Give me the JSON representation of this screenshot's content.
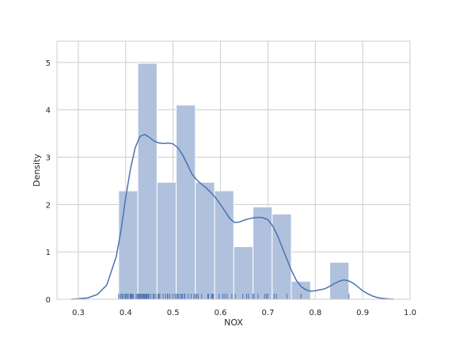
{
  "chart_data": {
    "type": "histogram",
    "xlabel": "NOX",
    "ylabel": "Density",
    "xlim": [
      0.255,
      1.0
    ],
    "ylim": [
      0,
      5.45
    ],
    "x_ticks": [
      0.3,
      0.4,
      0.5,
      0.6,
      0.7,
      0.8,
      0.9,
      1.0
    ],
    "x_tick_labels": [
      "0.3",
      "0.4",
      "0.5",
      "0.6",
      "0.7",
      "0.8",
      "0.9",
      "1.0"
    ],
    "y_ticks": [
      0,
      1,
      2,
      3,
      4,
      5
    ],
    "y_tick_labels": [
      "0",
      "1",
      "2",
      "3",
      "4",
      "5"
    ],
    "grid": true,
    "histogram": {
      "bins": [
        {
          "x0": 0.385,
          "x1": 0.4255,
          "density": 2.29
        },
        {
          "x0": 0.4255,
          "x1": 0.466,
          "density": 4.98
        },
        {
          "x0": 0.466,
          "x1": 0.5065,
          "density": 2.47
        },
        {
          "x0": 0.5065,
          "x1": 0.547,
          "density": 4.1
        },
        {
          "x0": 0.547,
          "x1": 0.5875,
          "density": 2.47
        },
        {
          "x0": 0.5875,
          "x1": 0.628,
          "density": 2.29
        },
        {
          "x0": 0.628,
          "x1": 0.6685,
          "density": 1.11
        },
        {
          "x0": 0.6685,
          "x1": 0.709,
          "density": 1.95
        },
        {
          "x0": 0.709,
          "x1": 0.7495,
          "density": 1.8
        },
        {
          "x0": 0.7495,
          "x1": 0.79,
          "density": 0.38
        },
        {
          "x0": 0.79,
          "x1": 0.8305,
          "density": 0.0
        },
        {
          "x0": 0.8305,
          "x1": 0.871,
          "density": 0.78
        }
      ]
    },
    "kde": {
      "x": [
        0.285,
        0.3,
        0.32,
        0.34,
        0.36,
        0.38,
        0.39,
        0.4,
        0.41,
        0.42,
        0.43,
        0.44,
        0.45,
        0.46,
        0.47,
        0.48,
        0.49,
        0.5,
        0.51,
        0.52,
        0.53,
        0.54,
        0.55,
        0.56,
        0.57,
        0.58,
        0.59,
        0.6,
        0.61,
        0.62,
        0.63,
        0.64,
        0.65,
        0.66,
        0.67,
        0.68,
        0.69,
        0.7,
        0.71,
        0.72,
        0.73,
        0.74,
        0.75,
        0.76,
        0.77,
        0.78,
        0.79,
        0.8,
        0.81,
        0.82,
        0.83,
        0.84,
        0.85,
        0.86,
        0.87,
        0.88,
        0.89,
        0.9,
        0.91,
        0.92,
        0.93,
        0.94,
        0.95,
        0.965
      ],
      "y": [
        0.0,
        0.01,
        0.03,
        0.1,
        0.3,
        0.9,
        1.45,
        2.15,
        2.75,
        3.2,
        3.44,
        3.48,
        3.42,
        3.34,
        3.3,
        3.29,
        3.3,
        3.28,
        3.2,
        3.05,
        2.85,
        2.64,
        2.52,
        2.43,
        2.35,
        2.25,
        2.14,
        2.0,
        1.85,
        1.7,
        1.62,
        1.63,
        1.67,
        1.7,
        1.72,
        1.73,
        1.72,
        1.68,
        1.55,
        1.35,
        1.1,
        0.85,
        0.6,
        0.4,
        0.27,
        0.2,
        0.17,
        0.18,
        0.2,
        0.22,
        0.27,
        0.33,
        0.38,
        0.41,
        0.39,
        0.34,
        0.26,
        0.18,
        0.12,
        0.07,
        0.04,
        0.02,
        0.01,
        0.0
      ]
    },
    "rug": [
      0.385,
      0.389,
      0.392,
      0.394,
      0.398,
      0.4,
      0.401,
      0.404,
      0.405,
      0.409,
      0.41,
      0.411,
      0.413,
      0.415,
      0.416,
      0.422,
      0.425,
      0.426,
      0.428,
      0.429,
      0.431,
      0.433,
      0.435,
      0.437,
      0.438,
      0.439,
      0.44,
      0.442,
      0.443,
      0.445,
      0.447,
      0.448,
      0.449,
      0.453,
      0.458,
      0.46,
      0.464,
      0.468,
      0.47,
      0.472,
      0.479,
      0.484,
      0.488,
      0.489,
      0.493,
      0.499,
      0.504,
      0.507,
      0.51,
      0.511,
      0.515,
      0.518,
      0.52,
      0.524,
      0.525,
      0.532,
      0.538,
      0.544,
      0.547,
      0.55,
      0.553,
      0.56,
      0.573,
      0.575,
      0.581,
      0.583,
      0.585,
      0.597,
      0.605,
      0.609,
      0.614,
      0.624,
      0.631,
      0.647,
      0.655,
      0.659,
      0.668,
      0.671,
      0.679,
      0.693,
      0.697,
      0.7,
      0.713,
      0.718,
      0.74,
      0.77,
      0.871
    ]
  }
}
